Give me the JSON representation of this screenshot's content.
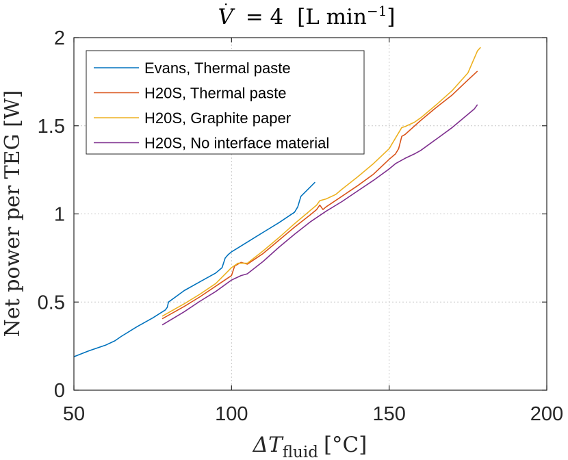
{
  "chart_data": {
    "type": "line",
    "title": {
      "symbol": "V",
      "equals": "= 4",
      "unit_main": "[L min",
      "unit_exp": "−1",
      "unit_close": "]"
    },
    "xlabel": {
      "delta": "ΔT",
      "subscript": "fluid",
      "unit": "[°C]"
    },
    "ylabel": "Net power per TEG [W]",
    "xlim": [
      50,
      200
    ],
    "ylim": [
      0,
      2
    ],
    "xticks": [
      50,
      100,
      150,
      200
    ],
    "yticks": [
      0,
      0.5,
      1,
      1.5,
      2
    ],
    "xtick_labels": [
      "50",
      "100",
      "150",
      "200"
    ],
    "ytick_labels": [
      "0",
      "0.5",
      "1",
      "1.5",
      "2"
    ],
    "grid": true,
    "legend_position": "top-left",
    "series": [
      {
        "name": "Evans, Thermal paste",
        "color": "#0072BD",
        "points": [
          [
            50,
            0.19
          ],
          [
            55,
            0.225
          ],
          [
            60,
            0.255
          ],
          [
            63,
            0.28
          ],
          [
            65,
            0.305
          ],
          [
            70,
            0.36
          ],
          [
            75,
            0.41
          ],
          [
            79,
            0.455
          ],
          [
            79.6,
            0.47
          ],
          [
            80,
            0.5
          ],
          [
            85,
            0.565
          ],
          [
            90,
            0.615
          ],
          [
            95,
            0.665
          ],
          [
            97,
            0.695
          ],
          [
            98,
            0.75
          ],
          [
            99,
            0.77
          ],
          [
            100,
            0.785
          ],
          [
            105,
            0.84
          ],
          [
            110,
            0.895
          ],
          [
            115,
            0.95
          ],
          [
            120,
            1.01
          ],
          [
            121,
            1.04
          ],
          [
            122,
            1.1
          ],
          [
            124,
            1.135
          ],
          [
            126.5,
            1.18
          ]
        ]
      },
      {
        "name": "H20S, Thermal paste",
        "color": "#D95319",
        "points": [
          [
            78,
            0.405
          ],
          [
            85,
            0.475
          ],
          [
            90,
            0.53
          ],
          [
            95,
            0.59
          ],
          [
            100,
            0.65
          ],
          [
            101,
            0.705
          ],
          [
            103,
            0.725
          ],
          [
            105,
            0.715
          ],
          [
            110,
            0.775
          ],
          [
            115,
            0.85
          ],
          [
            120,
            0.925
          ],
          [
            125,
            0.995
          ],
          [
            127,
            1.025
          ],
          [
            128,
            1.05
          ],
          [
            129,
            1.025
          ],
          [
            130,
            1.04
          ],
          [
            135,
            1.1
          ],
          [
            140,
            1.16
          ],
          [
            145,
            1.225
          ],
          [
            150,
            1.31
          ],
          [
            152,
            1.34
          ],
          [
            153,
            1.37
          ],
          [
            154,
            1.44
          ],
          [
            155,
            1.45
          ],
          [
            160,
            1.53
          ],
          [
            165,
            1.605
          ],
          [
            170,
            1.675
          ],
          [
            175,
            1.76
          ],
          [
            178,
            1.81
          ]
        ]
      },
      {
        "name": "H20S, Graphite paper",
        "color": "#EDB120",
        "points": [
          [
            78,
            0.42
          ],
          [
            85,
            0.49
          ],
          [
            90,
            0.545
          ],
          [
            95,
            0.605
          ],
          [
            100,
            0.695
          ],
          [
            102,
            0.72
          ],
          [
            105,
            0.72
          ],
          [
            110,
            0.79
          ],
          [
            115,
            0.865
          ],
          [
            120,
            0.945
          ],
          [
            125,
            1.02
          ],
          [
            127,
            1.05
          ],
          [
            128,
            1.075
          ],
          [
            130,
            1.085
          ],
          [
            133,
            1.11
          ],
          [
            135,
            1.14
          ],
          [
            140,
            1.21
          ],
          [
            145,
            1.285
          ],
          [
            150,
            1.37
          ],
          [
            154,
            1.49
          ],
          [
            155,
            1.495
          ],
          [
            158,
            1.52
          ],
          [
            160,
            1.545
          ],
          [
            165,
            1.62
          ],
          [
            170,
            1.7
          ],
          [
            175,
            1.8
          ],
          [
            178,
            1.925
          ],
          [
            179,
            1.945
          ]
        ]
      },
      {
        "name": "H20S, No interface material",
        "color": "#7E2F8E",
        "points": [
          [
            78,
            0.37
          ],
          [
            85,
            0.445
          ],
          [
            90,
            0.505
          ],
          [
            95,
            0.56
          ],
          [
            100,
            0.625
          ],
          [
            103,
            0.65
          ],
          [
            105,
            0.66
          ],
          [
            110,
            0.73
          ],
          [
            115,
            0.81
          ],
          [
            120,
            0.885
          ],
          [
            125,
            0.955
          ],
          [
            130,
            1.015
          ],
          [
            135,
            1.07
          ],
          [
            140,
            1.13
          ],
          [
            145,
            1.19
          ],
          [
            150,
            1.255
          ],
          [
            152,
            1.285
          ],
          [
            155,
            1.315
          ],
          [
            158,
            1.34
          ],
          [
            160,
            1.36
          ],
          [
            165,
            1.425
          ],
          [
            170,
            1.49
          ],
          [
            175,
            1.565
          ],
          [
            177,
            1.595
          ],
          [
            178,
            1.62
          ]
        ]
      }
    ]
  }
}
